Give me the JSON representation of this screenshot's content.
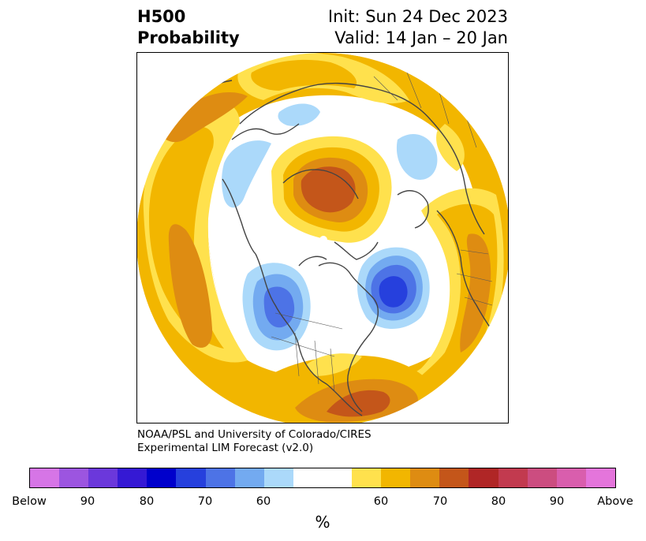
{
  "title": {
    "left_line1": "H500",
    "left_line2": "Probability",
    "right_line1": "Init: Sun 24 Dec 2023",
    "right_line2": "Valid: 14 Jan – 20 Jan"
  },
  "credit": {
    "line1": "NOAA/PSL and University of Colorado/CIRES",
    "line2": "Experimental LIM Forecast (v2.0)"
  },
  "colorbar": {
    "unit": "%",
    "colors": [
      "#d675e6",
      "#9c55e0",
      "#6b38db",
      "#3519d4",
      "#0000cc",
      "#2640dd",
      "#4d73e6",
      "#73aaf0",
      "#abd9fa",
      "#ffffff",
      "#ffffff",
      "#ffe14d",
      "#f2b600",
      "#de8c12",
      "#c4561a",
      "#b02626",
      "#c23a4f",
      "#cc4d80",
      "#d95ead",
      "#e475db"
    ],
    "labels": [
      "Below",
      "90",
      "80",
      "70",
      "60",
      "60",
      "70",
      "80",
      "90",
      "Above"
    ]
  },
  "map": {
    "projection": "north-polar-stereographic",
    "palette": {
      "above_60": "#ffe14d",
      "above_65": "#f2b600",
      "above_70": "#de8c12",
      "above_75": "#c4561a",
      "below_60": "#abd9fa",
      "below_65": "#73aaf0",
      "below_70": "#4d73e6",
      "below_75": "#2640dd",
      "coast": "#444444",
      "border": "#555555"
    }
  }
}
